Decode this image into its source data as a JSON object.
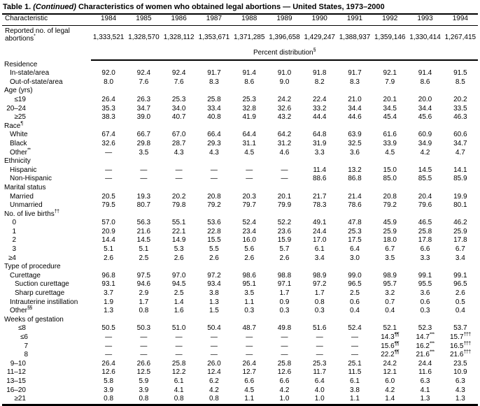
{
  "title": {
    "prefix": "Table 1.",
    "continued": "(Continued)",
    "rest": "Characteristics of women who obtained legal abortions — United States, 1973–2000"
  },
  "columns": {
    "label": "Characteristic",
    "years": [
      "1984",
      "1985",
      "1986",
      "1987",
      "1988",
      "1989",
      "1990",
      "1991",
      "1992",
      "1993",
      "1994"
    ]
  },
  "reported": {
    "label_lines": [
      "Reported no. of legal",
      {
        "v": "abortions",
        "sup": "*"
      }
    ],
    "values": [
      "1,333,521",
      "1,328,570",
      "1,328,112",
      "1,353,671",
      "1,371,285",
      "1,396,658",
      "1,429,247",
      "1,388,937",
      "1,359,146",
      "1,330,414",
      "1,267,415"
    ]
  },
  "percent_header": {
    "v": "Percent distribution",
    "sup": "§"
  },
  "sections": [
    {
      "header": "Residence",
      "rows": [
        {
          "label": "In-state/area",
          "indent": "i1",
          "values": [
            "92.0",
            "92.4",
            "92.4",
            "91.7",
            "91.4",
            "91.0",
            "91.8",
            "91.7",
            "92.1",
            "91.4",
            "91.5"
          ]
        },
        {
          "label": "Out-of-state/area",
          "indent": "i1",
          "values": [
            "8.0",
            "7.6",
            "7.6",
            "8.3",
            "8.6",
            "9.0",
            "8.2",
            "8.3",
            "7.9",
            "8.6",
            "8.5"
          ]
        }
      ]
    },
    {
      "header": "Age (yrs)",
      "rows": [
        {
          "label": "≤19",
          "indent": "n2",
          "values": [
            "26.4",
            "26.3",
            "25.3",
            "25.8",
            "25.3",
            "24.2",
            "22.4",
            "21.0",
            "20.1",
            "20.0",
            "20.2"
          ]
        },
        {
          "label": "20–24",
          "indent": "n2",
          "values": [
            "35.3",
            "34.7",
            "34.0",
            "33.4",
            "32.8",
            "32.6",
            "33.2",
            "34.4",
            "34.5",
            "34.4",
            "33.5"
          ]
        },
        {
          "label": "≥25",
          "indent": "n2",
          "values": [
            "38.3",
            "39.0",
            "40.7",
            "40.8",
            "41.9",
            "43.2",
            "44.4",
            "44.6",
            "45.4",
            "45.6",
            "46.3"
          ]
        }
      ]
    },
    {
      "header": {
        "v": "Race",
        "sup": "¶"
      },
      "rows": [
        {
          "label": "White",
          "indent": "i1",
          "values": [
            "67.4",
            "66.7",
            "67.0",
            "66.4",
            "64.4",
            "64.2",
            "64.8",
            "63.9",
            "61.6",
            "60.9",
            "60.6"
          ]
        },
        {
          "label": "Black",
          "indent": "i1",
          "values": [
            "32.6",
            "29.8",
            "28.7",
            "29.3",
            "31.1",
            "31.2",
            "31.9",
            "32.5",
            "33.9",
            "34.9",
            "34.7"
          ]
        },
        {
          "label": {
            "v": "Other",
            "sup": "**"
          },
          "indent": "i1",
          "values": [
            "—",
            "3.5",
            "4.3",
            "4.3",
            "4.5",
            "4.6",
            "3.3",
            "3.6",
            "4.5",
            "4.2",
            "4.7"
          ]
        }
      ]
    },
    {
      "header": "Ethnicity",
      "rows": [
        {
          "label": "Hispanic",
          "indent": "i1",
          "values": [
            "—",
            "—",
            "—",
            "—",
            "—",
            "—",
            "11.4",
            "13.2",
            "15.0",
            "14.5",
            "14.1"
          ]
        },
        {
          "label": "Non-Hispanic",
          "indent": "i1",
          "values": [
            "—",
            "—",
            "—",
            "—",
            "—",
            "—",
            "88.6",
            "86.8",
            "85.0",
            "85.5",
            "85.9"
          ]
        }
      ]
    },
    {
      "header": "Marital status",
      "rows": [
        {
          "label": "Married",
          "indent": "i1",
          "values": [
            "20.5",
            "19.3",
            "20.2",
            "20.8",
            "20.3",
            "20.1",
            "21.7",
            "21.4",
            "20.8",
            "20.4",
            "19.9"
          ]
        },
        {
          "label": "Unmarried",
          "indent": "i1",
          "values": [
            "79.5",
            "80.7",
            "79.8",
            "79.2",
            "79.7",
            "79.9",
            "78.3",
            "78.6",
            "79.2",
            "79.6",
            "80.1"
          ]
        }
      ]
    },
    {
      "header": {
        "v": "No. of live births",
        "sup": "††"
      },
      "rows": [
        {
          "label": "0",
          "indent": "n1",
          "values": [
            "57.0",
            "56.3",
            "55.1",
            "53.6",
            "52.4",
            "52.2",
            "49.1",
            "47.8",
            "45.9",
            "46.5",
            "46.2"
          ]
        },
        {
          "label": "1",
          "indent": "n1",
          "values": [
            "20.9",
            "21.6",
            "22.1",
            "22.8",
            "23.4",
            "23.6",
            "24.4",
            "25.3",
            "25.9",
            "25.8",
            "25.9"
          ]
        },
        {
          "label": "2",
          "indent": "n1",
          "values": [
            "14.4",
            "14.5",
            "14.9",
            "15.5",
            "16.0",
            "15.9",
            "17.0",
            "17.5",
            "18.0",
            "17.8",
            "17.8"
          ]
        },
        {
          "label": "3",
          "indent": "n1",
          "values": [
            "5.1",
            "5.1",
            "5.3",
            "5.5",
            "5.6",
            "5.7",
            "6.1",
            "6.4",
            "6.7",
            "6.6",
            "6.7"
          ]
        },
        {
          "label": "≥4",
          "indent": "n1",
          "values": [
            "2.6",
            "2.5",
            "2.6",
            "2.6",
            "2.6",
            "2.6",
            "3.4",
            "3.0",
            "3.5",
            "3.3",
            "3.4"
          ]
        }
      ]
    },
    {
      "header": "Type of procedure",
      "rows": [
        {
          "label": "Curettage",
          "indent": "i1",
          "values": [
            "96.8",
            "97.5",
            "97.0",
            "97.2",
            "98.6",
            "98.8",
            "98.9",
            "99.0",
            "98.9",
            "99.1",
            "99.1"
          ]
        },
        {
          "label": "Suction curettage",
          "indent": "i2",
          "values": [
            "93.1",
            "94.6",
            "94.5",
            "93.4",
            "95.1",
            "97.1",
            "97.2",
            "96.5",
            "95.7",
            "95.5",
            "96.5"
          ]
        },
        {
          "label": "Sharp curettage",
          "indent": "i2",
          "values": [
            "3.7",
            "2.9",
            "2.5",
            "3.8",
            "3.5",
            "1.7",
            "1.7",
            "2.5",
            "3.2",
            "3.6",
            "2.6"
          ]
        },
        {
          "label": "Intrauterine instillation",
          "indent": "i1",
          "values": [
            "1.9",
            "1.7",
            "1.4",
            "1.3",
            "1.1",
            "0.9",
            "0.8",
            "0.6",
            "0.7",
            "0.6",
            "0.5"
          ]
        },
        {
          "label": {
            "v": "Other",
            "sup": "§§"
          },
          "indent": "i1",
          "values": [
            "1.3",
            "0.8",
            "1.6",
            "1.5",
            "0.3",
            "0.3",
            "0.3",
            "0.4",
            "0.4",
            "0.3",
            "0.4"
          ]
        }
      ]
    },
    {
      "header": "Weeks of gestation",
      "rows": [
        {
          "label": "≤8",
          "indent": "n2",
          "values": [
            "50.5",
            "50.3",
            "51.0",
            "50.4",
            "48.7",
            "49.8",
            "51.6",
            "52.4",
            "52.1",
            "52.3",
            "53.7"
          ]
        },
        {
          "label": "≤6",
          "indent": "n3",
          "values": [
            "—",
            "—",
            "—",
            "—",
            "—",
            "—",
            "—",
            "—",
            {
              "v": "14.3",
              "sup": "¶¶"
            },
            {
              "v": "14.7",
              "sup": "***"
            },
            {
              "v": "15.7",
              "sup": "†††"
            }
          ]
        },
        {
          "label": "7",
          "indent": "n3",
          "values": [
            "—",
            "—",
            "—",
            "—",
            "—",
            "—",
            "—",
            "—",
            {
              "v": "15.6",
              "sup": "¶¶"
            },
            {
              "v": "16.2",
              "sup": "***"
            },
            {
              "v": "16.5",
              "sup": "†††"
            }
          ]
        },
        {
          "label": "8",
          "indent": "n3",
          "values": [
            "—",
            "—",
            "—",
            "—",
            "—",
            "—",
            "—",
            "—",
            {
              "v": "22.2",
              "sup": "¶¶"
            },
            {
              "v": "21.6",
              "sup": "***"
            },
            {
              "v": "21.6",
              "sup": "†††"
            }
          ]
        },
        {
          "label": "9–10",
          "indent": "n2",
          "values": [
            "26.4",
            "26.6",
            "25.8",
            "26.0",
            "26.4",
            "25.8",
            "25.3",
            "25.1",
            "24.2",
            "24.4",
            "23.5"
          ]
        },
        {
          "label": "11–12",
          "indent": "n2",
          "values": [
            "12.6",
            "12.5",
            "12.2",
            "12.4",
            "12.7",
            "12.6",
            "11.7",
            "11.5",
            "12.1",
            "11.6",
            "10.9"
          ]
        },
        {
          "label": "13–15",
          "indent": "n2",
          "values": [
            "5.8",
            "5.9",
            "6.1",
            "6.2",
            "6.6",
            "6.6",
            "6.4",
            "6.1",
            "6.0",
            "6.3",
            "6.3"
          ]
        },
        {
          "label": "16–20",
          "indent": "n2",
          "values": [
            "3.9",
            "3.9",
            "4.1",
            "4.2",
            "4.5",
            "4.2",
            "4.0",
            "3.8",
            "4.2",
            "4.1",
            "4.3"
          ]
        },
        {
          "label": "≥21",
          "indent": "n2",
          "values": [
            "0.8",
            "0.8",
            "0.8",
            "0.8",
            "1.1",
            "1.0",
            "1.0",
            "1.1",
            "1.4",
            "1.3",
            "1.3"
          ]
        }
      ]
    }
  ]
}
